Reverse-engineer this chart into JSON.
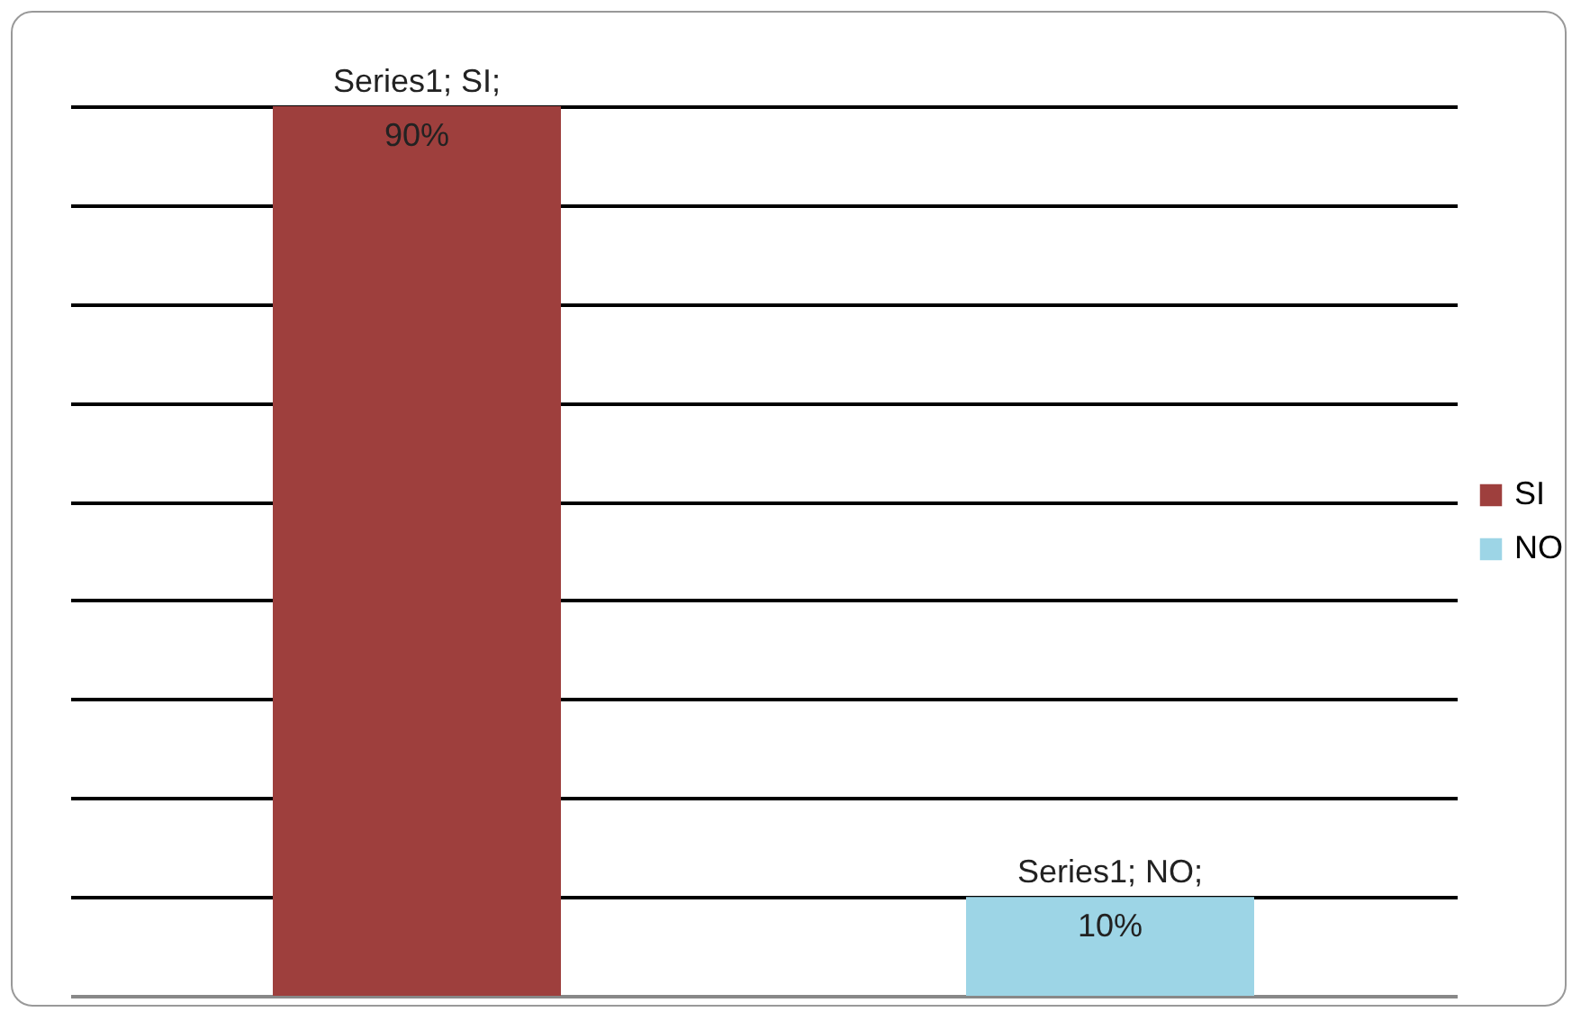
{
  "chart_data": {
    "type": "bar",
    "categories": [
      null,
      null
    ],
    "series": [
      {
        "name": "SI",
        "color": "#9e3f3d",
        "values": [
          90,
          null
        ],
        "value_labels": [
          "Series1; SI; 90%",
          null
        ]
      },
      {
        "name": "NO",
        "color": "#9dd5e6",
        "values": [
          null,
          10
        ],
        "value_labels": [
          null,
          "Series1; NO; 10%"
        ]
      }
    ],
    "ylim": [
      0,
      90
    ],
    "yticks": [
      {
        "value": 0,
        "label": null
      },
      {
        "value": 10,
        "label": null
      },
      {
        "value": 20,
        "label": null
      },
      {
        "value": 30,
        "label": null
      },
      {
        "value": 40,
        "label": null
      },
      {
        "value": 50,
        "label": null
      },
      {
        "value": 60,
        "label": null
      },
      {
        "value": 70,
        "label": null
      },
      {
        "value": 80,
        "label": null
      },
      {
        "value": 90,
        "label": null
      }
    ],
    "stacked": true,
    "grid": "y",
    "legend": "right"
  }
}
